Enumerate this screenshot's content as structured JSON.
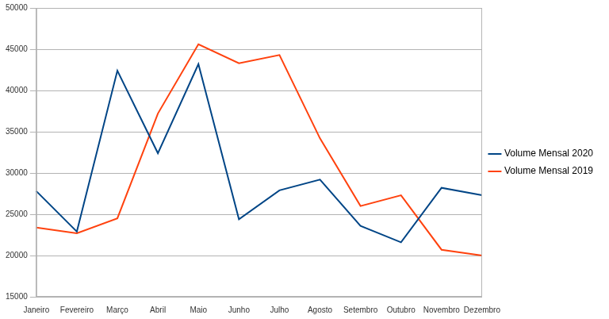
{
  "chart_data": {
    "type": "line",
    "categories": [
      "Janeiro",
      "Fevereiro",
      "Março",
      "Abril",
      "Maio",
      "Junho",
      "Julho",
      "Agosto",
      "Setembro",
      "Outubro",
      "Novembro",
      "Dezembro"
    ],
    "series": [
      {
        "name": "Volume Mensal 2020",
        "color": "#004586",
        "values": [
          27800,
          22900,
          42400,
          32400,
          43200,
          24400,
          27900,
          29200,
          23600,
          21600,
          28200,
          27300
        ]
      },
      {
        "name": "Volume Mensal 2019",
        "color": "#ff420e",
        "values": [
          23400,
          22700,
          24500,
          37200,
          45600,
          43300,
          44300,
          34200,
          26000,
          27300,
          20700,
          20000
        ]
      }
    ],
    "ylim": [
      15000,
      50000
    ],
    "yticks": [
      15000,
      20000,
      25000,
      30000,
      35000,
      40000,
      45000,
      50000
    ],
    "grid": true,
    "legend": "right",
    "marker": "none"
  }
}
